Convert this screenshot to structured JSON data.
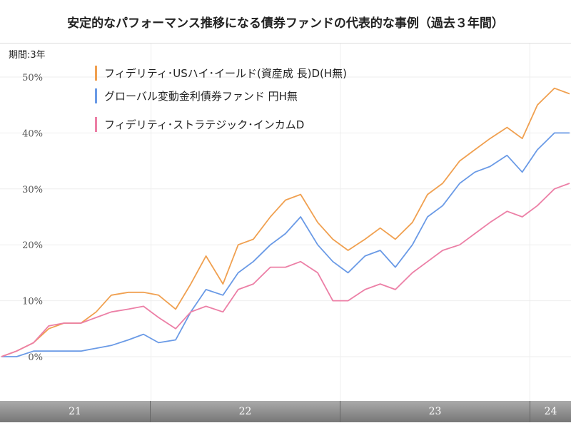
{
  "chart_data": {
    "type": "line",
    "title": "安定的なパフォーマンス推移になる債券ファンドの代表的な事例（過去３年間）",
    "period_label": "期間:3年",
    "ylim": [
      0,
      50
    ],
    "yticks": [
      "0%",
      "10%",
      "20%",
      "30%",
      "40%",
      "50%"
    ],
    "ytick_values": [
      0,
      10,
      20,
      30,
      40,
      50
    ],
    "xlim": [
      2021.21,
      2024.21
    ],
    "xtick_labels": [
      "21",
      "22",
      "23",
      "24"
    ],
    "year_boundaries": [
      2022,
      2023,
      2024
    ],
    "grid": true,
    "legend_position": "top-left",
    "x": [
      2021.21,
      2021.29,
      2021.38,
      2021.46,
      2021.54,
      2021.63,
      2021.71,
      2021.79,
      2021.88,
      2021.96,
      2022.04,
      2022.13,
      2022.21,
      2022.29,
      2022.38,
      2022.46,
      2022.54,
      2022.63,
      2022.71,
      2022.79,
      2022.88,
      2022.96,
      2023.04,
      2023.13,
      2023.21,
      2023.29,
      2023.38,
      2023.46,
      2023.54,
      2023.63,
      2023.71,
      2023.79,
      2023.88,
      2023.96,
      2024.04,
      2024.13,
      2024.21
    ],
    "series": [
      {
        "name": "フィデリティ･USハイ･イールド(資産成 長)D(H無)",
        "color": "#f0a050",
        "values": [
          0,
          1,
          2.5,
          5,
          6,
          6,
          8,
          11,
          11.5,
          11.5,
          11,
          8.5,
          13,
          18,
          13,
          20,
          21,
          25,
          28,
          29,
          24,
          21,
          19,
          21,
          23,
          21,
          24,
          29,
          31,
          35,
          37,
          39,
          41,
          39,
          45,
          48,
          47
        ]
      },
      {
        "name": "グローバル変動金利債券ファンド 円H無",
        "color": "#6a9ae6",
        "values": [
          0,
          0,
          1,
          1,
          1,
          1,
          1.5,
          2,
          3,
          4,
          2.5,
          3,
          8,
          12,
          11,
          15,
          17,
          20,
          22,
          25,
          20,
          17,
          15,
          18,
          19,
          16,
          20,
          25,
          27,
          31,
          33,
          34,
          36,
          33,
          37,
          40,
          40
        ]
      },
      {
        "name": "フィデリティ･ストラテジック･インカムD",
        "color": "#ec7fa6",
        "values": [
          0,
          1,
          2.5,
          5.5,
          6,
          6,
          7,
          8,
          8.5,
          9,
          7,
          5,
          8,
          9,
          8,
          12,
          13,
          16,
          16,
          17,
          15,
          10,
          10,
          12,
          13,
          12,
          15,
          17,
          19,
          20,
          22,
          24,
          26,
          25,
          27,
          30,
          31
        ]
      }
    ]
  }
}
